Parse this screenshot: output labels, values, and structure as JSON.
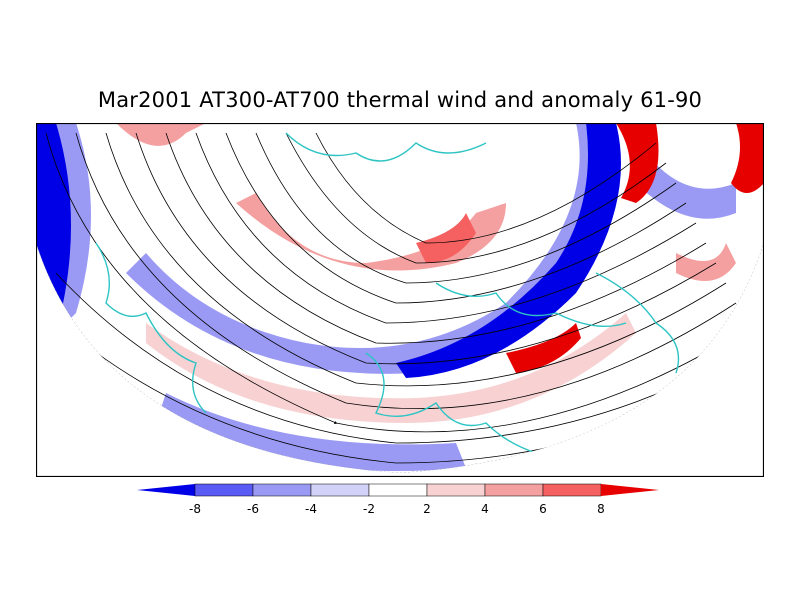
{
  "title": "Mar2001 AT300-AT700 thermal wind and anomaly 61-90",
  "map": {
    "projection": "polar stereographic, northern hemisphere (lower half shown)",
    "background": "#ffffff",
    "coastline_color": "#2ec4c4",
    "streamline_color": "#000000",
    "frame_color": "#000000"
  },
  "colorbar": {
    "labels": [
      "-8",
      "-6",
      "-4",
      "-2",
      "2",
      "4",
      "6",
      "8"
    ],
    "colors": [
      "#0000e6",
      "#5a5af5",
      "#9a9af5",
      "#d2d2f8",
      "#ffffff",
      "#f8d2d2",
      "#f5a0a0",
      "#f56060",
      "#e60000"
    ]
  }
}
